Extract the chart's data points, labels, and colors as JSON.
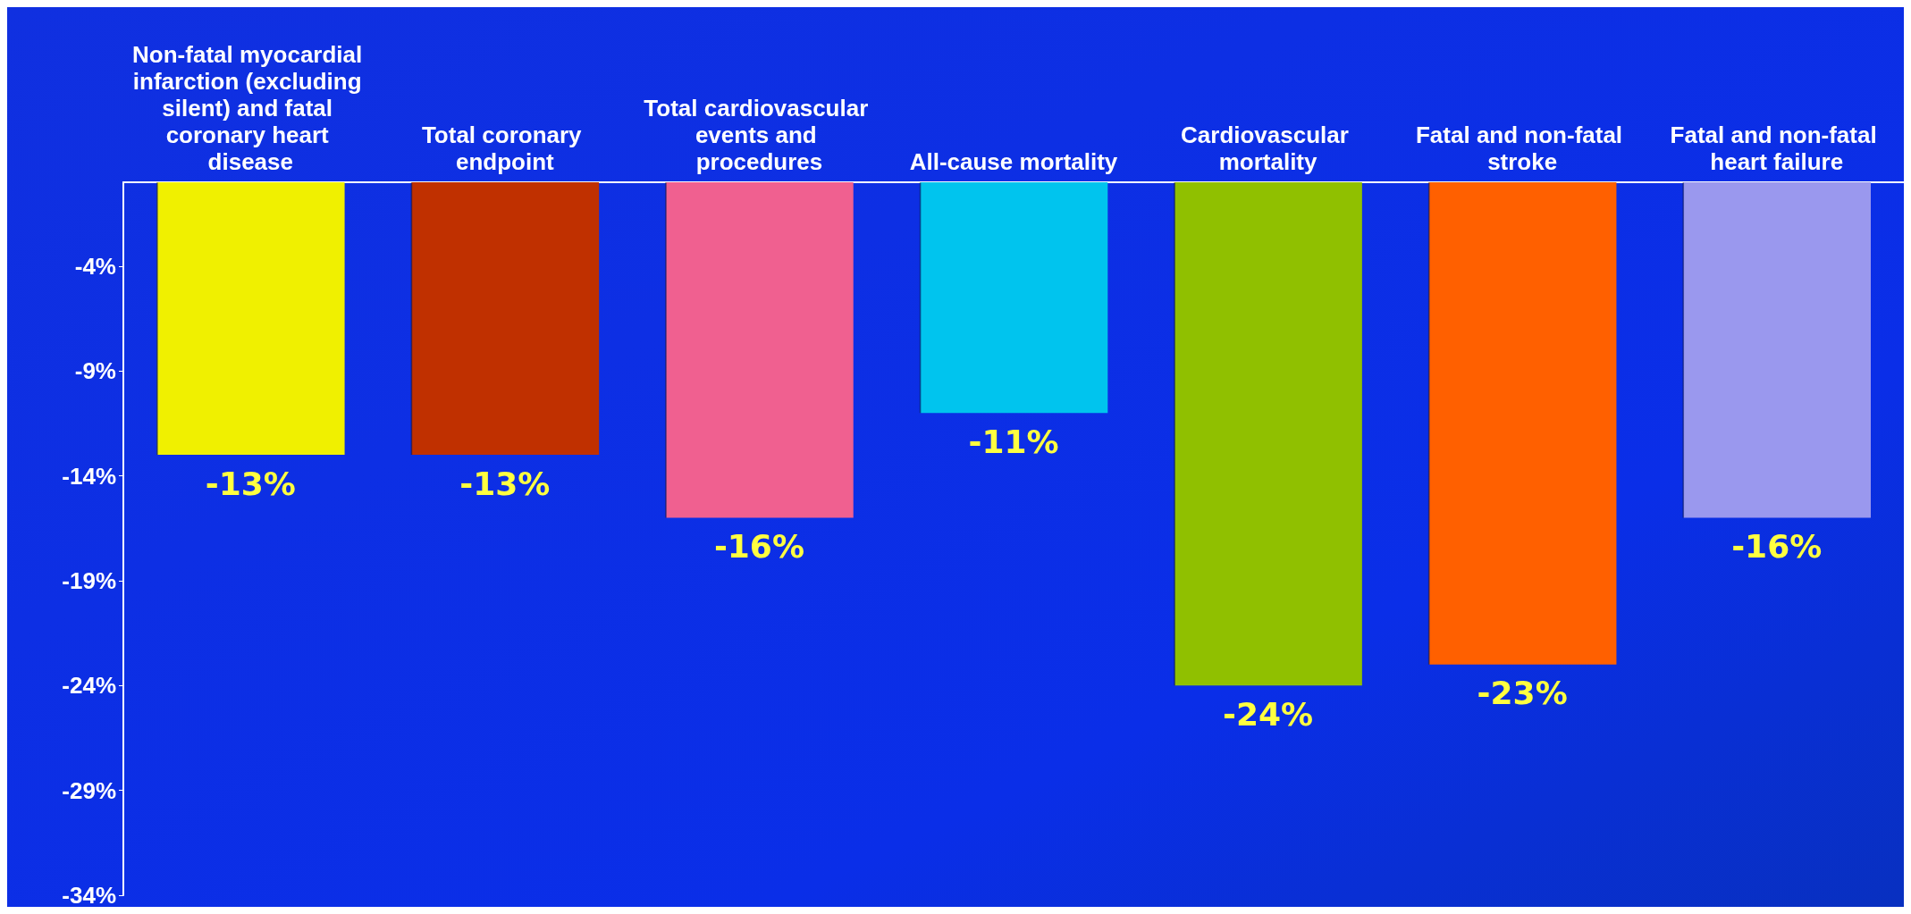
{
  "chart_data": {
    "type": "bar",
    "categories": [
      "Non-fatal myocardial infarction (excluding silent) and fatal coronary heart disease",
      "Total coronary endpoint",
      "Total cardiovascular events and procedures",
      "All-cause mortality",
      "Cardiovascular mortality",
      "Fatal and non-fatal stroke",
      "Fatal and non-fatal heart failure"
    ],
    "values": [
      -13,
      -13,
      -16,
      -11,
      -24,
      -23,
      -16
    ],
    "value_labels": [
      "-13%",
      "-13%",
      "-16%",
      "-11%",
      "-24%",
      "-23%",
      "-16%"
    ],
    "colors": [
      "#f0f000",
      "#c03000",
      "#f06090",
      "#00c4ee",
      "#90c000",
      "#ff6000",
      "#9a98ee"
    ],
    "ylim": [
      -34,
      0
    ],
    "yticks": [
      {
        "value": -4,
        "label": "-4%"
      },
      {
        "value": -9,
        "label": "-9%"
      },
      {
        "value": -14,
        "label": "-14%"
      },
      {
        "value": -19,
        "label": "-19%"
      },
      {
        "value": -24,
        "label": "-24%"
      },
      {
        "value": -29,
        "label": "-29%"
      },
      {
        "value": -34,
        "label": "-34%"
      }
    ],
    "grid": false
  }
}
